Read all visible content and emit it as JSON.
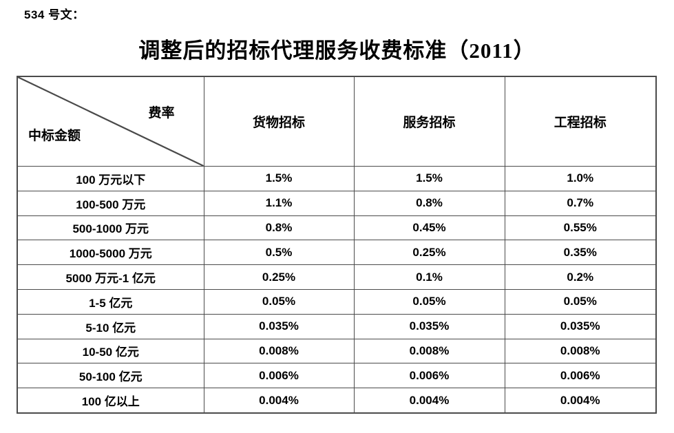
{
  "page": {
    "doc_label": "534 号文：",
    "title": "调整后的招标代理服务收费标准（2011）"
  },
  "table": {
    "corner": {
      "top_right": "费率",
      "bottom_left": "中标金额"
    },
    "columns": [
      "货物招标",
      "服务招标",
      "工程招标"
    ],
    "rows": [
      {
        "label": "100 万元以下",
        "values": [
          "1.5%",
          "1.5%",
          "1.0%"
        ]
      },
      {
        "label": "100-500 万元",
        "values": [
          "1.1%",
          "0.8%",
          "0.7%"
        ]
      },
      {
        "label": "500-1000 万元",
        "values": [
          "0.8%",
          "0.45%",
          "0.55%"
        ]
      },
      {
        "label": "1000-5000 万元",
        "values": [
          "0.5%",
          "0.25%",
          "0.35%"
        ]
      },
      {
        "label": "5000 万元-1 亿元",
        "values": [
          "0.25%",
          "0.1%",
          "0.2%"
        ]
      },
      {
        "label": "1-5 亿元",
        "values": [
          "0.05%",
          "0.05%",
          "0.05%"
        ]
      },
      {
        "label": "5-10 亿元",
        "values": [
          "0.035%",
          "0.035%",
          "0.035%"
        ]
      },
      {
        "label": "10-50 亿元",
        "values": [
          "0.008%",
          "0.008%",
          "0.008%"
        ]
      },
      {
        "label": "50-100 亿元",
        "values": [
          "0.006%",
          "0.006%",
          "0.006%"
        ]
      },
      {
        "label": "100 亿以上",
        "values": [
          "0.004%",
          "0.004%",
          "0.004%"
        ]
      }
    ],
    "colors": {
      "border": "#4a4a4a",
      "text": "#000000",
      "background": "#ffffff"
    }
  }
}
